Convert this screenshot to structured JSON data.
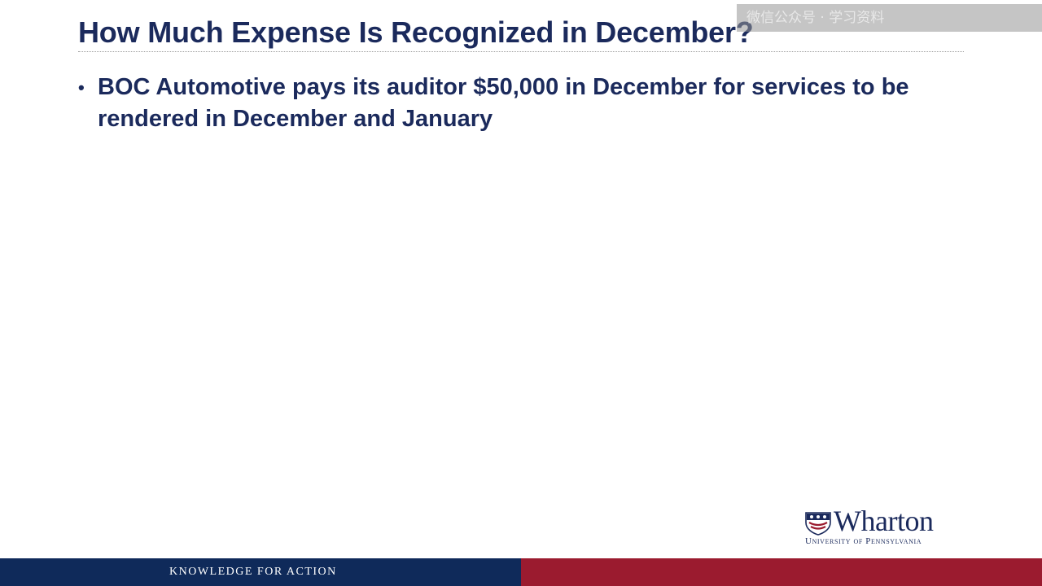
{
  "slide": {
    "title": "How Much Expense Is Recognized in December?",
    "bullets": [
      {
        "text": "BOC Automotive pays its auditor $50,000 in December for services to be rendered in December and January"
      }
    ]
  },
  "watermark": {
    "text": "微信公众号 · 学习资料"
  },
  "logo": {
    "wordmark": "Wharton",
    "subtitle": "University of Pennsylvania",
    "icon": "penn-shield-icon"
  },
  "footer": {
    "tagline": "KNOWLEDGE FOR ACTION"
  },
  "colors": {
    "title_text": "#1b2a5c",
    "footer_navy": "#0f2a5a",
    "footer_red": "#9b1b2f"
  }
}
